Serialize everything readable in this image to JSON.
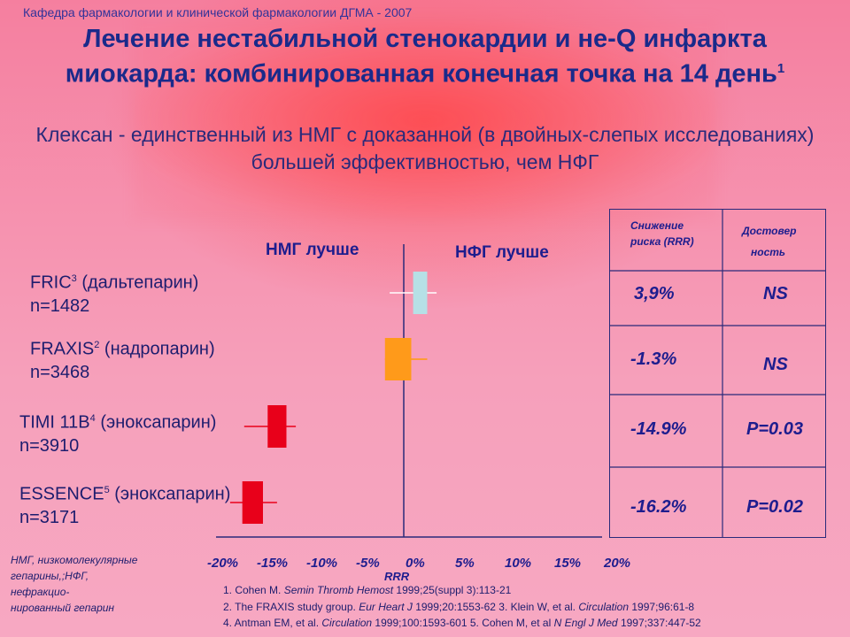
{
  "header": {
    "department": "Кафедра  фармакологии и клинической фармакологии ДГМА - 2007",
    "title": "Лечение нестабильной стенокардии и не-Q инфаркта миокарда: комбинированная конечная точка на 14 день",
    "title_sup": "1",
    "subtitle": "Клексан - единственный из НМГ с доказанной (в двойных-слепых исследованиях) большей эффективностью, чем НФГ"
  },
  "chart_data": {
    "type": "forest",
    "x_label": "RRR",
    "x_ticks": [
      "-20%",
      "-15%",
      "-10%",
      "-5%",
      "0%",
      "5%",
      "10%",
      "15%",
      "20%"
    ],
    "x_tick_values": [
      -20,
      -15,
      -10,
      -5,
      0,
      5,
      10,
      15,
      20
    ],
    "xlim": [
      -20,
      20
    ],
    "left_side_label": "НМГ лучше",
    "right_side_label": "НФГ лучше",
    "studies": [
      {
        "name": "FRIC",
        "sup": "3",
        "drug": " (дальтепарин)",
        "n": "n=1482",
        "rrr": 3.9,
        "box_low": 1,
        "box_high": 2.5,
        "ci_low": -1.5,
        "ci_high": 3.5,
        "color": "#b6e0e6"
      },
      {
        "name": "FRAXIS",
        "sup": "2",
        "drug": " (надропарин)",
        "n": "n=3468",
        "rrr": -1.3,
        "box_low": -2,
        "box_high": 0.8,
        "ci_low": -2,
        "ci_high": 2.5,
        "color": "#ff9a1a"
      },
      {
        "name": "TIMI 11B",
        "sup": "4",
        "drug": " (эноксапарин)",
        "n": "n=3910",
        "rrr": -14.9,
        "box_low": -14.5,
        "box_high": -12.5,
        "ci_low": -17,
        "ci_high": -11.5,
        "color": "#e8001a"
      },
      {
        "name": "ESSENCE",
        "sup": "5",
        "drug": " (эноксапарин)",
        "n": "n=3171",
        "rrr": -16.2,
        "box_low": -17.2,
        "box_high": -15,
        "ci_low": -18.5,
        "ci_high": -13.5,
        "color": "#e8001a"
      }
    ]
  },
  "table": {
    "header_rrr": [
      "Снижение",
      "риска (RRR)"
    ],
    "header_sig": [
      "Достовер",
      "ность"
    ],
    "rows": [
      {
        "rrr": "3,9%",
        "sig": "NS"
      },
      {
        "rrr": "-1.3%",
        "sig": "NS"
      },
      {
        "rrr": "-14.9%",
        "sig": "P=0.03"
      },
      {
        "rrr": "-16.2%",
        "sig": "P=0.02"
      }
    ]
  },
  "footnotes": {
    "abbreviations": [
      "НМГ, низкомолекулярные",
      "гепарины,;НФГ,",
      "нефракцио-",
      "нированный гепарин"
    ],
    "refs": [
      {
        "pre": "1. Cohen M. ",
        "journal": "Semin Thromb Hemost",
        "post": " 1999;25(suppl 3):113-21"
      },
      {
        "pre": "2. The FRAXIS study group. ",
        "journal": "Eur Heart J",
        "post": " 1999;20:1553-62    3. Klein W, et al. ",
        "journal2": "Circulation",
        "post2": " 1997;96:61-8"
      },
      {
        "pre": "4. Antman EM, et al. ",
        "journal": "Circulation",
        "post": " 1999;100:1593-601   5. Cohen M, et al ",
        "journal2": "N Engl J Med",
        "post2": " 1997;337:447-52"
      }
    ]
  },
  "colors": {
    "text_dark_blue": "#1d1d8e",
    "axis": "#2a2a7a",
    "ci_line": "#e8001a",
    "ci_line_fric": "#ffffff"
  }
}
